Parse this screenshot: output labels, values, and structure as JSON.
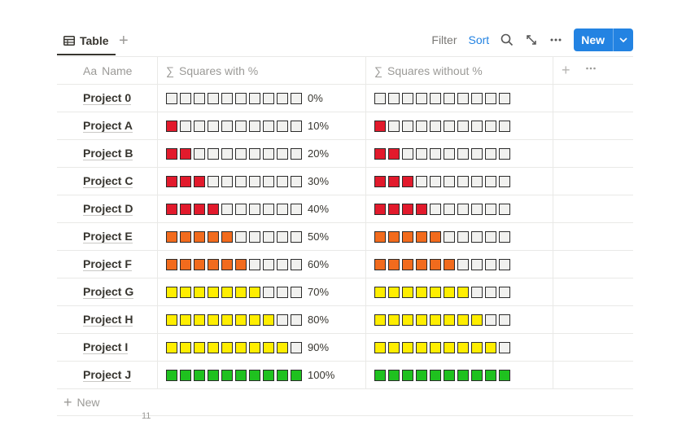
{
  "toolbar": {
    "tab_label": "Table",
    "filter_label": "Filter",
    "sort_label": "Sort",
    "new_button_label": "New"
  },
  "columns": {
    "name": "Name",
    "name_icon": "Aa",
    "with_pct": "Squares with %",
    "without_pct": "Squares without %",
    "formula_icon": "∑"
  },
  "colors": {
    "red": "#e21a2c",
    "orange": "#f26b1d",
    "yellow": "#ffee00",
    "green": "#1fc11f",
    "empty": "#f1f1ef",
    "accent": "#2383e2"
  },
  "rows": [
    {
      "name": "Project 0",
      "filled": 0,
      "color": "red",
      "pct_label": "0%"
    },
    {
      "name": "Project A",
      "filled": 1,
      "color": "red",
      "pct_label": "10%"
    },
    {
      "name": "Project B",
      "filled": 2,
      "color": "red",
      "pct_label": "20%"
    },
    {
      "name": "Project C",
      "filled": 3,
      "color": "red",
      "pct_label": "30%"
    },
    {
      "name": "Project D",
      "filled": 4,
      "color": "red",
      "pct_label": "40%"
    },
    {
      "name": "Project E",
      "filled": 5,
      "color": "orange",
      "pct_label": "50%"
    },
    {
      "name": "Project F",
      "filled": 6,
      "color": "orange",
      "pct_label": "60%"
    },
    {
      "name": "Project G",
      "filled": 7,
      "color": "yellow",
      "pct_label": "70%"
    },
    {
      "name": "Project H",
      "filled": 8,
      "color": "yellow",
      "pct_label": "80%"
    },
    {
      "name": "Project I",
      "filled": 9,
      "color": "yellow",
      "pct_label": "90%"
    },
    {
      "name": "Project J",
      "filled": 10,
      "color": "green",
      "pct_label": "100%"
    }
  ],
  "new_row_label": "New",
  "count_label": "11"
}
